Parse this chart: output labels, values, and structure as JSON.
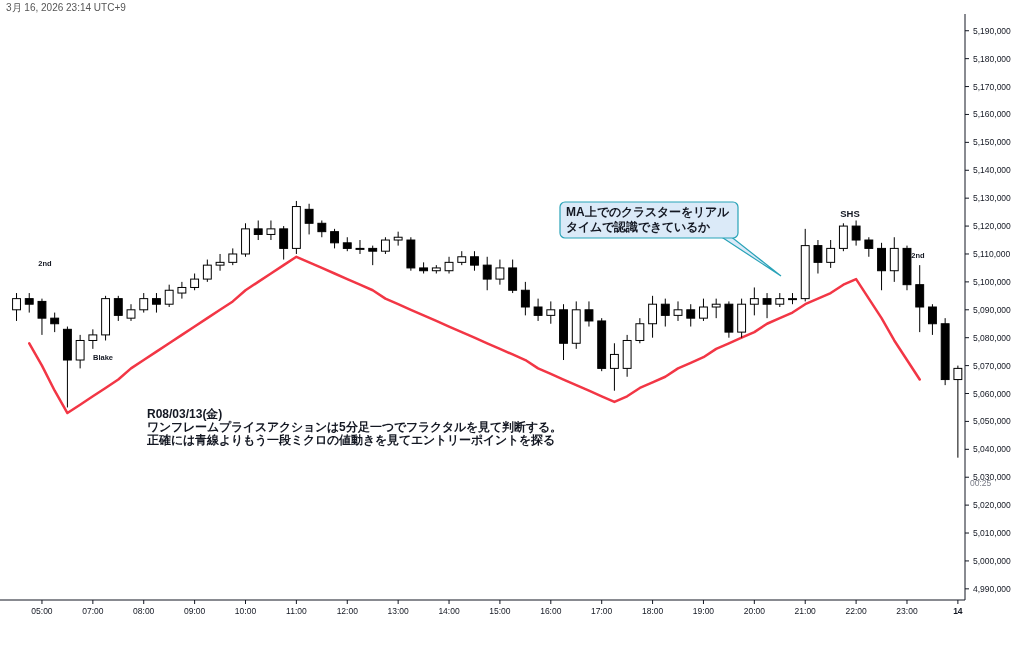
{
  "chart_data": {
    "type": "candlestick",
    "subtitle": "3月 16, 2026 23:14 UTC+9",
    "color": "#000000",
    "categories": [
      null,
      null,
      "05:00",
      null,
      null,
      null,
      "07:00",
      null,
      null,
      null,
      "08:00",
      null,
      null,
      null,
      "09:00",
      null,
      null,
      null,
      "10:00",
      null,
      null,
      null,
      "11:00",
      null,
      null,
      null,
      "12:00",
      null,
      null,
      null,
      "13:00",
      null,
      null,
      null,
      "14:00",
      null,
      null,
      null,
      "15:00",
      null,
      null,
      null,
      "16:00",
      null,
      null,
      null,
      "17:00",
      null,
      null,
      null,
      "18:00",
      null,
      null,
      null,
      "19:00",
      null,
      null,
      null,
      "20:00",
      null,
      null,
      null,
      "21:00",
      null,
      null,
      null,
      "22:00",
      null,
      null,
      null,
      "23:00",
      null,
      null,
      null,
      "14"
    ],
    "ohlc": [
      [
        5090000,
        5096000,
        5086000,
        5094000
      ],
      [
        5094000,
        5096000,
        5089000,
        5092000
      ],
      [
        5093000,
        5094000,
        5081000,
        5087000
      ],
      [
        5087000,
        5089000,
        5082000,
        5085000
      ],
      [
        5083000,
        5084000,
        5055000,
        5072000
      ],
      [
        5072000,
        5081000,
        5069000,
        5079000
      ],
      [
        5079000,
        5083000,
        5076000,
        5081000
      ],
      [
        5081000,
        5095000,
        5079000,
        5094000
      ],
      [
        5094000,
        5095000,
        5086000,
        5088000
      ],
      [
        5087000,
        5092000,
        5086000,
        5090000
      ],
      [
        5090000,
        5096000,
        5089000,
        5094000
      ],
      [
        5094000,
        5096000,
        5089000,
        5092000
      ],
      [
        5092000,
        5099000,
        5091000,
        5097000
      ],
      [
        5096000,
        5100000,
        5094000,
        5098000
      ],
      [
        5098000,
        5103000,
        5097000,
        5101000
      ],
      [
        5101000,
        5108000,
        5100000,
        5106000
      ],
      [
        5106000,
        5110000,
        5104000,
        5107000
      ],
      [
        5107000,
        5112000,
        5106000,
        5110000
      ],
      [
        5110000,
        5121000,
        5109000,
        5119000
      ],
      [
        5119000,
        5122000,
        5115000,
        5117000
      ],
      [
        5117000,
        5122000,
        5115000,
        5119000
      ],
      [
        5119000,
        5120000,
        5108000,
        5112000
      ],
      [
        5112000,
        5129000,
        5110000,
        5127000
      ],
      [
        5126000,
        5128000,
        5117000,
        5121000
      ],
      [
        5121000,
        5122000,
        5116000,
        5118000
      ],
      [
        5118000,
        5119000,
        5112000,
        5114000
      ],
      [
        5114000,
        5116000,
        5111000,
        5112000
      ],
      [
        5112000,
        5115000,
        5110000,
        5112000
      ],
      [
        5112000,
        5113000,
        5106000,
        5111000
      ],
      [
        5111000,
        5116000,
        5110000,
        5115000
      ],
      [
        5115000,
        5118000,
        5113000,
        5116000
      ],
      [
        5115000,
        5116000,
        5104000,
        5105000
      ],
      [
        5105000,
        5107000,
        5103000,
        5104000
      ],
      [
        5104000,
        5106000,
        5103000,
        5105000
      ],
      [
        5104000,
        5109000,
        5103000,
        5107000
      ],
      [
        5107000,
        5111000,
        5106000,
        5109000
      ],
      [
        5109000,
        5111000,
        5104000,
        5106000
      ],
      [
        5106000,
        5109000,
        5097000,
        5101000
      ],
      [
        5101000,
        5108000,
        5099000,
        5105000
      ],
      [
        5105000,
        5108000,
        5096000,
        5097000
      ],
      [
        5097000,
        5100000,
        5088000,
        5091000
      ],
      [
        5091000,
        5094000,
        5086000,
        5088000
      ],
      [
        5088000,
        5093000,
        5085000,
        5090000
      ],
      [
        5090000,
        5092000,
        5072000,
        5078000
      ],
      [
        5078000,
        5093000,
        5076000,
        5090000
      ],
      [
        5090000,
        5093000,
        5084000,
        5086000
      ],
      [
        5086000,
        5087000,
        5068000,
        5069000
      ],
      [
        5069000,
        5078000,
        5061000,
        5074000
      ],
      [
        5069000,
        5081000,
        5066000,
        5079000
      ],
      [
        5079000,
        5087000,
        5078000,
        5085000
      ],
      [
        5085000,
        5095000,
        5080000,
        5092000
      ],
      [
        5092000,
        5094000,
        5084000,
        5088000
      ],
      [
        5088000,
        5093000,
        5086000,
        5090000
      ],
      [
        5090000,
        5092000,
        5084000,
        5087000
      ],
      [
        5087000,
        5094000,
        5086000,
        5091000
      ],
      [
        5091000,
        5094000,
        5087000,
        5092000
      ],
      [
        5092000,
        5093000,
        5080000,
        5082000
      ],
      [
        5082000,
        5094000,
        5080000,
        5092000
      ],
      [
        5092000,
        5098000,
        5088000,
        5094000
      ],
      [
        5094000,
        5096000,
        5087000,
        5092000
      ],
      [
        5092000,
        5096000,
        5091000,
        5094000
      ],
      [
        5094000,
        5096000,
        5092000,
        5094000
      ],
      [
        5094000,
        5119000,
        5093000,
        5113000
      ],
      [
        5113000,
        5115000,
        5103000,
        5107000
      ],
      [
        5107000,
        5115000,
        5105000,
        5112000
      ],
      [
        5112000,
        5121000,
        5111000,
        5120000
      ],
      [
        5120000,
        5122000,
        5113000,
        5115000
      ],
      [
        5115000,
        5116000,
        5109000,
        5112000
      ],
      [
        5112000,
        5114000,
        5097000,
        5104000
      ],
      [
        5104000,
        5116000,
        5100000,
        5112000
      ],
      [
        5112000,
        5113000,
        5097000,
        5099000
      ],
      [
        5099000,
        5106000,
        5082000,
        5091000
      ],
      [
        5091000,
        5092000,
        5081000,
        5085000
      ],
      [
        5085000,
        5087000,
        5063000,
        5065000
      ],
      [
        5065000,
        5070000,
        5037000,
        5069000
      ]
    ],
    "series": [
      {
        "type": "line",
        "color": "#f23645",
        "values": [
          null,
          5078000,
          5070000,
          5061000,
          5053000,
          5056000,
          5059000,
          5062000,
          5065000,
          5069000,
          5072000,
          5075000,
          5078000,
          5081000,
          5084000,
          5087000,
          5090000,
          5093000,
          5097000,
          5100000,
          5103000,
          5106000,
          5109000,
          5107000,
          5105000,
          5103000,
          5101000,
          5099000,
          5097000,
          5094000,
          5092000,
          5090000,
          5088000,
          5086000,
          5084000,
          5082000,
          5080000,
          5078000,
          5076000,
          5074000,
          5072000,
          5069000,
          5067000,
          5065000,
          5063000,
          5061000,
          5059000,
          5057000,
          5059000,
          5062000,
          5064000,
          5066000,
          5069000,
          5071000,
          5073000,
          5076000,
          5078000,
          5080000,
          5082000,
          5085000,
          5087000,
          5089000,
          5092000,
          5094000,
          5096000,
          5099000,
          5101000,
          5094000,
          5087000,
          5079000,
          5072000,
          5065000,
          null,
          null,
          null
        ]
      }
    ],
    "ylim": [
      4986000,
      5196000
    ],
    "yticks": [
      {
        "value": 4990000,
        "label": "4,990,000"
      },
      {
        "value": 5000000,
        "label": "5,000,000"
      },
      {
        "value": 5010000,
        "label": "5,010,000"
      },
      {
        "value": 5020000,
        "label": "5,020,000"
      },
      {
        "value": 5030000,
        "label": "5,030,000"
      },
      {
        "value": 5040000,
        "label": "5,040,000"
      },
      {
        "value": 5050000,
        "label": "5,050,000"
      },
      {
        "value": 5060000,
        "label": "5,060,000"
      },
      {
        "value": 5070000,
        "label": "5,070,000"
      },
      {
        "value": 5080000,
        "label": "5,080,000"
      },
      {
        "value": 5090000,
        "label": "5,090,000"
      },
      {
        "value": 5100000,
        "label": "5,100,000"
      },
      {
        "value": 5110000,
        "label": "5,110,000"
      },
      {
        "value": 5120000,
        "label": "5,120,000"
      },
      {
        "value": 5130000,
        "label": "5,130,000"
      },
      {
        "value": 5140000,
        "label": "5,140,000"
      },
      {
        "value": 5150000,
        "label": "5,150,000"
      },
      {
        "value": 5160000,
        "label": "5,160,000"
      },
      {
        "value": 5170000,
        "label": "5,170,000"
      },
      {
        "value": 5180000,
        "label": "5,180,000"
      },
      {
        "value": 5190000,
        "label": "5,190,000"
      }
    ],
    "annotations": [
      "2nd",
      "Blake",
      "SHS",
      "2nd",
      "MA上でのクラスターをリアル",
      "タイムで認識できているか",
      "R08/03/13(金)",
      "ワンフレームプライスアクションは5分足一つでフラクタルを見て判断する。",
      "正確には青線よりもう一段ミクロの値動きを見てエントリーポイントを探る",
      "00:25"
    ]
  }
}
